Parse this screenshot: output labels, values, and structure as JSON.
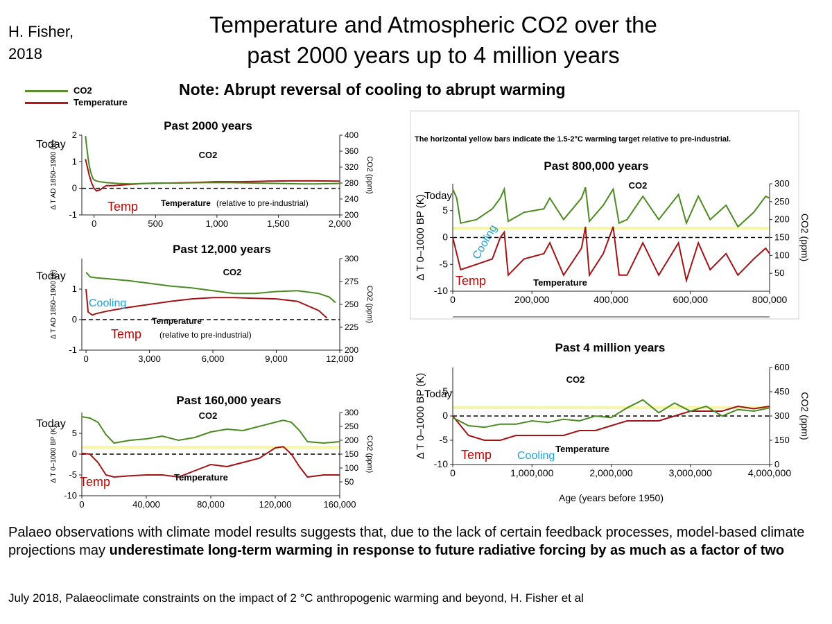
{
  "header": {
    "author": "H. Fisher,",
    "author_year": "2018",
    "title_line1": "Temperature and Atmospheric CO2 over the",
    "title_line2": "past 2000 years up to 4 million years",
    "note": "Note: Abrupt reversal of cooling to abrupt warming"
  },
  "legend": {
    "items": [
      {
        "label": "CO2",
        "color": "#5a8f2a"
      },
      {
        "label": "Temperature",
        "color": "#b0191b"
      }
    ]
  },
  "yellow_bar_note": "The horizontal yellow bars indicate the 1.5-2°C warming target relative to pre-industrial.",
  "footer": {
    "text_plain": " Palaeo observations with climate model results suggests that, due to the lack of certain feedback processes, model-based climate projections may ",
    "text_bold": "underestimate long-term warming in response to future radiative forcing by as much as a factor of two",
    "citation": "July 2018, Palaeoclimate constraints on the impact of 2 °C anthropogenic warming and beyond,  H. Fisher et al"
  },
  "colors": {
    "co2": "#4a8a1f",
    "temp": "#a11214",
    "cooling_label": "#1aa3d9",
    "temp_label": "#c00000",
    "target_bar": "#f7f5a6"
  },
  "chart_data": [
    {
      "id": "p2000",
      "type": "line",
      "title": "Past 2000 years",
      "x_range": [
        -100,
        2000
      ],
      "x_ticks": [
        0,
        500,
        1000,
        1500,
        2000
      ],
      "x_tick_labels": [
        "0",
        "500",
        "1,000",
        "1,500",
        "2,000"
      ],
      "y_left_label": "Δ T AD 1850–1900 (K)",
      "y_left_range": [
        -1,
        2
      ],
      "y_left_ticks": [
        -1,
        0,
        1,
        2
      ],
      "y_right_label": "CO2 (ppm)",
      "y_right_range": [
        200,
        400
      ],
      "y_right_ticks": [
        200,
        240,
        280,
        320,
        360,
        400
      ],
      "co2": {
        "x": [
          -70,
          -60,
          -50,
          -40,
          -30,
          -20,
          -10,
          0,
          20,
          50,
          100,
          150,
          200,
          300,
          400,
          500,
          700,
          900,
          1100,
          1300,
          1500,
          1700,
          1800,
          2000
        ],
        "y": [
          398,
          370,
          345,
          325,
          310,
          300,
          292,
          288,
          285,
          283,
          281,
          280,
          279,
          278,
          279,
          280,
          280,
          281,
          281,
          280,
          279,
          278,
          278,
          279
        ]
      },
      "temp": {
        "x": [
          -70,
          -60,
          -50,
          -40,
          -30,
          -20,
          -10,
          0,
          20,
          50,
          80,
          100,
          150,
          200,
          300,
          400,
          600,
          800,
          1000,
          1200,
          1400,
          1600,
          1800,
          2000
        ],
        "y": [
          1.1,
          0.9,
          0.7,
          0.5,
          0.35,
          0.2,
          0.1,
          0.0,
          -0.1,
          -0.05,
          0.05,
          0.1,
          0.1,
          0.12,
          0.15,
          0.18,
          0.2,
          0.22,
          0.25,
          0.25,
          0.27,
          0.28,
          0.28,
          0.27
        ]
      },
      "labels": {
        "co2": "CO2",
        "temperature": "Temperature",
        "relative": "(relative to pre-industrial)",
        "today": "Today",
        "temp": "Temp"
      }
    },
    {
      "id": "p12000",
      "type": "line",
      "title": "Past 12,000 years",
      "x_range": [
        -200,
        12000
      ],
      "x_ticks": [
        0,
        3000,
        6000,
        9000,
        12000
      ],
      "x_tick_labels": [
        "0",
        "3,000",
        "6,000",
        "9,000",
        "12,000"
      ],
      "y_left_label": "Δ T AD 1850–1900 (K)",
      "y_left_range": [
        -1,
        2
      ],
      "y_left_ticks": [
        -1,
        0,
        1
      ],
      "y_right_label": "CO2 (ppm)",
      "y_right_range": [
        200,
        300
      ],
      "y_right_ticks": [
        200,
        225,
        250,
        275,
        300
      ],
      "co2": {
        "x": [
          0,
          200,
          500,
          1000,
          2000,
          3000,
          4000,
          5000,
          6000,
          7000,
          8000,
          9000,
          10000,
          11000,
          11500,
          11800
        ],
        "y": [
          285,
          280,
          279,
          278,
          276,
          273,
          270,
          268,
          265,
          262,
          262,
          264,
          265,
          262,
          258,
          252
        ]
      },
      "temp": {
        "x": [
          0,
          100,
          300,
          500,
          1000,
          2000,
          3000,
          4000,
          5000,
          6000,
          7000,
          8000,
          9000,
          10000,
          11000,
          11400
        ],
        "y": [
          1.0,
          0.25,
          0.15,
          0.2,
          0.28,
          0.4,
          0.5,
          0.6,
          0.68,
          0.72,
          0.72,
          0.7,
          0.68,
          0.6,
          0.3,
          0.05
        ]
      },
      "labels": {
        "co2": "CO2",
        "temperature": "Temperature",
        "relative": "(relative to pre-industrial)",
        "today": "Today",
        "temp": "Temp",
        "cooling": "Cooling"
      }
    },
    {
      "id": "p160000",
      "type": "line",
      "title": "Past 160,000 years",
      "x_range": [
        0,
        160000
      ],
      "x_ticks": [
        0,
        40000,
        80000,
        120000,
        160000
      ],
      "x_tick_labels": [
        "0",
        "40,000",
        "80,000",
        "120,000",
        "160,000"
      ],
      "y_left_label": "Δ T 0–1000 BP (K)",
      "y_left_range": [
        -10,
        10
      ],
      "y_left_ticks": [
        -10,
        -5,
        0,
        5
      ],
      "y_right_label": "CO2 (ppm)",
      "y_right_range": [
        0,
        300
      ],
      "y_right_ticks": [
        50,
        100,
        150,
        200,
        250,
        300
      ],
      "target_band": [
        1.5,
        2.0
      ],
      "co2": {
        "x": [
          0,
          5000,
          10000,
          15000,
          20000,
          30000,
          40000,
          50000,
          60000,
          70000,
          80000,
          90000,
          100000,
          110000,
          120000,
          125000,
          130000,
          135000,
          140000,
          150000,
          160000
        ],
        "y": [
          285,
          280,
          265,
          220,
          190,
          200,
          205,
          215,
          200,
          210,
          230,
          240,
          235,
          250,
          265,
          272,
          265,
          235,
          195,
          190,
          195
        ]
      },
      "temp": {
        "x": [
          0,
          5000,
          10000,
          15000,
          20000,
          30000,
          40000,
          50000,
          60000,
          70000,
          80000,
          90000,
          100000,
          110000,
          120000,
          125000,
          130000,
          135000,
          140000,
          150000,
          160000
        ],
        "y": [
          0.2,
          0,
          -2,
          -5,
          -5.5,
          -5.2,
          -5,
          -5,
          -5.5,
          -4,
          -2.5,
          -3,
          -2,
          -1,
          1.5,
          1.8,
          0,
          -3,
          -5.5,
          -5,
          -5
        ]
      },
      "labels": {
        "co2": "CO2",
        "temperature": "Temperature",
        "today": "Today",
        "temp": "Temp"
      }
    },
    {
      "id": "p800000",
      "type": "line",
      "title": "Past 800,000 years",
      "x_range": [
        0,
        800000
      ],
      "x_ticks": [
        0,
        200000,
        400000,
        600000,
        800000
      ],
      "x_tick_labels": [
        "0",
        "200,000",
        "400,000",
        "600,000",
        "800,000"
      ],
      "y_left_label": "Δ T 0–1000 BP (K)",
      "y_left_range": [
        -10,
        10
      ],
      "y_left_ticks": [
        -10,
        -5,
        0,
        5
      ],
      "y_right_label": "CO2 (ppm)",
      "y_right_range": [
        0,
        300
      ],
      "y_right_ticks": [
        50,
        100,
        150,
        200,
        250,
        300
      ],
      "target_band": [
        1.5,
        2.0
      ],
      "co2": {
        "x": [
          0,
          10000,
          20000,
          60000,
          100000,
          120000,
          130000,
          140000,
          180000,
          230000,
          245000,
          280000,
          325000,
          335000,
          345000,
          380000,
          405000,
          420000,
          440000,
          480000,
          520000,
          570000,
          590000,
          620000,
          650000,
          690000,
          720000,
          760000,
          790000,
          800000
        ],
        "y": [
          285,
          260,
          190,
          200,
          230,
          260,
          285,
          195,
          220,
          230,
          260,
          200,
          260,
          290,
          195,
          240,
          285,
          190,
          200,
          265,
          200,
          270,
          190,
          265,
          200,
          240,
          180,
          220,
          265,
          260
        ]
      },
      "temp": {
        "x": [
          0,
          10000,
          20000,
          60000,
          100000,
          120000,
          130000,
          140000,
          180000,
          230000,
          245000,
          280000,
          325000,
          335000,
          345000,
          380000,
          405000,
          420000,
          440000,
          480000,
          520000,
          570000,
          590000,
          620000,
          650000,
          690000,
          720000,
          760000,
          790000,
          800000
        ],
        "y": [
          0,
          -3,
          -6,
          -5,
          -4,
          0,
          1,
          -7,
          -4,
          -3,
          -1,
          -7,
          -2,
          2,
          -7,
          -3,
          2,
          -7,
          -7,
          -1,
          -7,
          -1,
          -8,
          -1,
          -6,
          -3,
          -7,
          -4,
          -2,
          -3
        ]
      },
      "labels": {
        "co2": "CO2",
        "temperature": "Temperature",
        "today": "Today",
        "temp": "Temp",
        "cooling": "Cooling"
      }
    },
    {
      "id": "p4myr",
      "type": "line",
      "title": "Past 4 million years",
      "x_range": [
        0,
        4000000
      ],
      "x_ticks": [
        0,
        1000000,
        2000000,
        3000000,
        4000000
      ],
      "x_tick_labels": [
        "0",
        "1,000,000",
        "2,000,000",
        "3,000,000",
        "4,000,000"
      ],
      "xlabel": "Age (years before 1950)",
      "y_left_label": "Δ T 0–1000 BP (K)",
      "y_left_range": [
        -10,
        10
      ],
      "y_left_ticks": [
        -10,
        -5,
        0,
        5
      ],
      "y_right_label": "CO2 (ppm)",
      "y_right_range": [
        0,
        600
      ],
      "y_right_ticks": [
        0,
        150,
        300,
        450,
        600
      ],
      "target_band": [
        1.5,
        2.0
      ],
      "co2": {
        "x": [
          0,
          200000,
          400000,
          600000,
          800000,
          1000000,
          1200000,
          1400000,
          1600000,
          1800000,
          2000000,
          2200000,
          2400000,
          2600000,
          2800000,
          3000000,
          3200000,
          3400000,
          3600000,
          3800000,
          4000000
        ],
        "y": [
          290,
          240,
          230,
          250,
          250,
          270,
          260,
          280,
          270,
          300,
          290,
          350,
          400,
          320,
          380,
          330,
          360,
          300,
          340,
          330,
          350
        ]
      },
      "temp": {
        "x": [
          0,
          200000,
          400000,
          600000,
          800000,
          1000000,
          1200000,
          1400000,
          1600000,
          1800000,
          2000000,
          2200000,
          2400000,
          2600000,
          2800000,
          3000000,
          3200000,
          3400000,
          3600000,
          3800000,
          4000000
        ],
        "y": [
          0,
          -4,
          -5,
          -5,
          -4,
          -4,
          -4,
          -4,
          -3,
          -3,
          -2,
          -1,
          -1,
          -1,
          0,
          1,
          1,
          1,
          2,
          1.5,
          2
        ]
      },
      "labels": {
        "co2": "CO2",
        "temperature": "Temperature",
        "today": "Today",
        "temp": "Temp",
        "cooling": "Cooling"
      }
    }
  ]
}
